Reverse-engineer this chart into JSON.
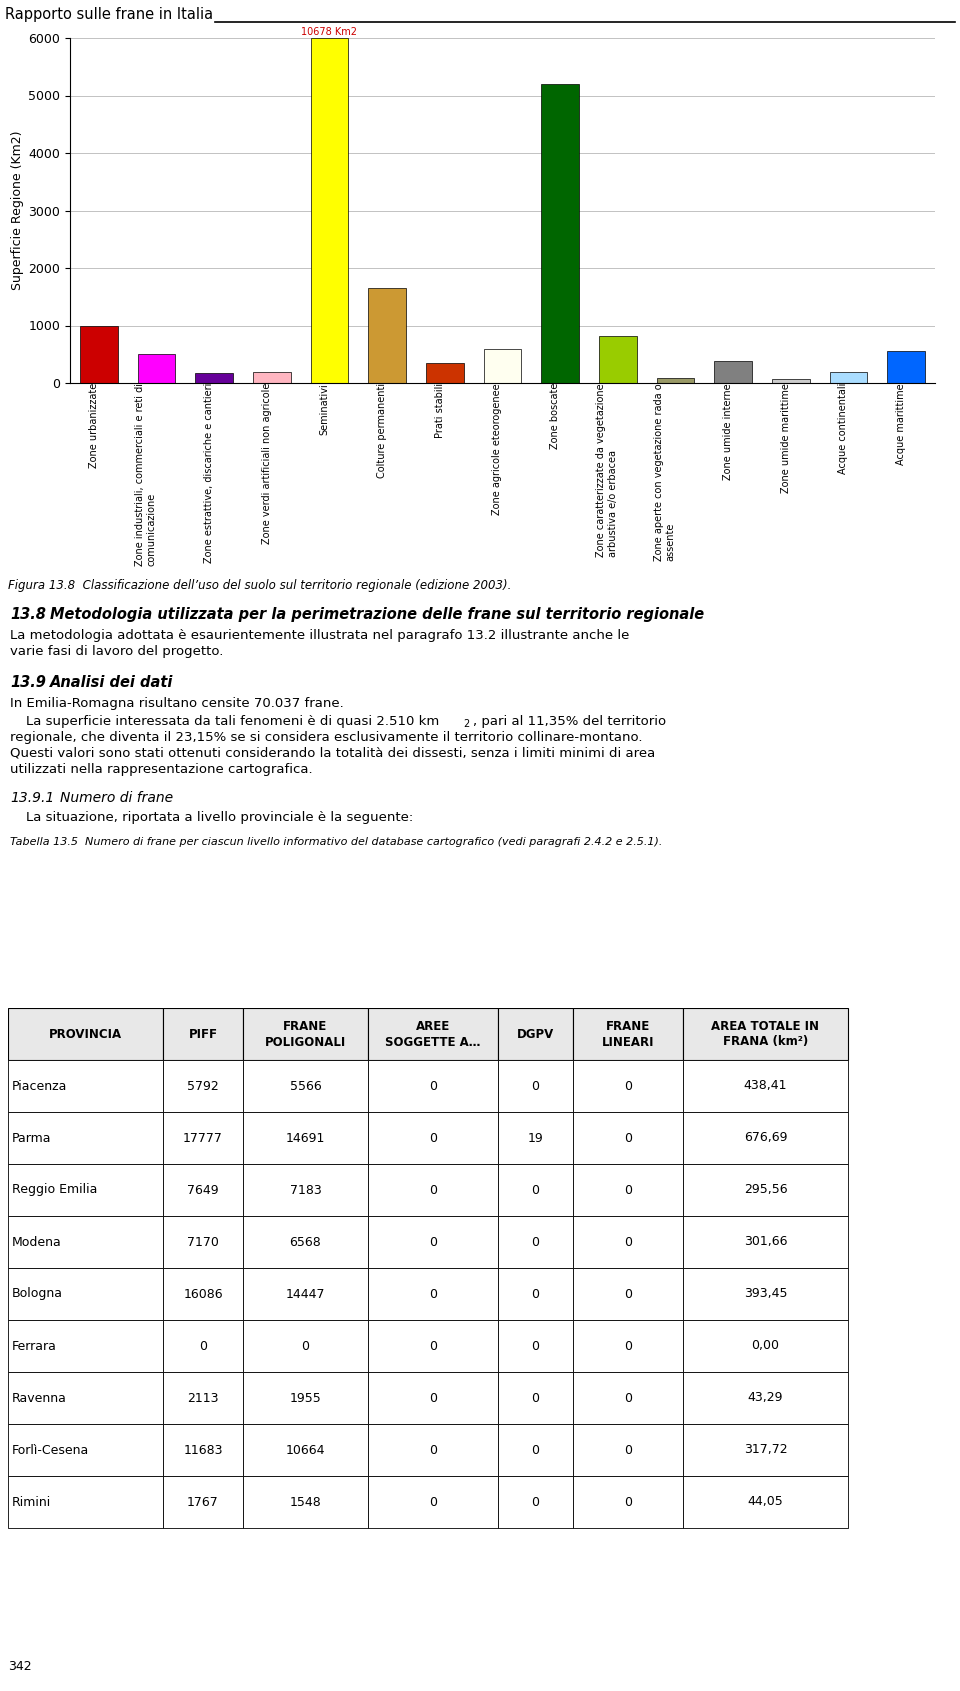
{
  "header_text": "Rapporto sulle frane in Italia",
  "chart_ylabel": "Superficie Regione (Km2)",
  "chart_ylim": [
    0,
    6000
  ],
  "chart_yticks": [
    0,
    1000,
    2000,
    3000,
    4000,
    5000,
    6000
  ],
  "chart_annotation": "10678 Km2",
  "bars": [
    {
      "label": "Zone urbanizzate",
      "value": 1000,
      "color": "#cc0000"
    },
    {
      "label": "Zone industriali, commerciali e reti di\ncomunicazione",
      "value": 500,
      "color": "#ff00ff"
    },
    {
      "label": "Zone estrattive, discariche e cantieri",
      "value": 175,
      "color": "#660099"
    },
    {
      "label": "Zone verdi artificiali non agricole",
      "value": 200,
      "color": "#ffb6c1"
    },
    {
      "label": "Seminativi",
      "value": 6000,
      "color": "#ffff00"
    },
    {
      "label": "Colture permanenti",
      "value": 1650,
      "color": "#cc9933"
    },
    {
      "label": "Prati stabili",
      "value": 340,
      "color": "#cc3300"
    },
    {
      "label": "Zone agricole eteorogenee",
      "value": 600,
      "color": "#fffff0"
    },
    {
      "label": "Zone boscate",
      "value": 5200,
      "color": "#006600"
    },
    {
      "label": "Zone caratterizzate da vegetazione\narbustiva e/o erbacea",
      "value": 820,
      "color": "#99cc00"
    },
    {
      "label": "Zone aperte con vegetazione rada o\nassente",
      "value": 95,
      "color": "#999966"
    },
    {
      "label": "Zone umide interne",
      "value": 390,
      "color": "#808080"
    },
    {
      "label": "Zone umide marittime",
      "value": 75,
      "color": "#cccccc"
    },
    {
      "label": "Acque continentali",
      "value": 185,
      "color": "#aaddff"
    },
    {
      "label": "Acque marittime",
      "value": 560,
      "color": "#0066ff"
    }
  ],
  "fig_caption": "Figura 13.8  Classificazione dell’uso del suolo sul territorio regionale (edizione 2003).",
  "section_38_num": "13.8",
  "section_38_title": "   Metodologia utilizzata per la perimetrazione delle frane sul territorio regionale",
  "section_38_body1": "   La metodologia adottata è esaurientemente illustrata nel paragrafo 13.2 illustrante anche le",
  "section_38_body2": "varie fasi di lavoro del progetto.",
  "section_39_num": "13.9",
  "section_39_title": "   Analisi dei dati",
  "section_39_p1": "   In Emilia-Romagna risultano censite 70.037 frane.",
  "section_39_p2a": "   La superficie interessata da tali fenomeni è di quasi 2.510 km",
  "section_39_p2b": "2",
  "section_39_p2c": ", pari al 11,35% del territorio",
  "section_39_p2d": "regionale, che diventa il 23,15% se si considera esclusivamente il territorio collinare-montano.",
  "section_39_p2e": "Questi valori sono stati ottenuti considerando la totalità dei dissesti, senza i limiti minimi di area",
  "section_39_p2f": "utilizzati nella rappresentazione cartografica.",
  "section_391_num": "13.9.1",
  "section_391_title": "   Numero di frane",
  "section_391_body": "   La situazione, riportata a livello provinciale è la seguente:",
  "table_caption": "Tabella 13.5  Numero di frane per ciascun livello informativo del database cartografico (vedi paragrafi 2.4.2 e 2.5.1).",
  "table_headers": [
    "PROVINCIA",
    "PIFF",
    "FRANE\nPOLIGONALI",
    "AREE\nSOGGETTE A…",
    "DGPV",
    "FRANE\nLINEARI",
    "AREA TOTALE IN\nFRANA (km²)"
  ],
  "table_rows": [
    [
      "Piacenza",
      "5792",
      "5566",
      "0",
      "0",
      "0",
      "438,41"
    ],
    [
      "Parma",
      "17777",
      "14691",
      "0",
      "19",
      "0",
      "676,69"
    ],
    [
      "Reggio Emilia",
      "7649",
      "7183",
      "0",
      "0",
      "0",
      "295,56"
    ],
    [
      "Modena",
      "7170",
      "6568",
      "0",
      "0",
      "0",
      "301,66"
    ],
    [
      "Bologna",
      "16086",
      "14447",
      "0",
      "0",
      "0",
      "393,45"
    ],
    [
      "Ferrara",
      "0",
      "0",
      "0",
      "0",
      "0",
      "0,00"
    ],
    [
      "Ravenna",
      "2113",
      "1955",
      "0",
      "0",
      "0",
      "43,29"
    ],
    [
      "Forlì-Cesena",
      "11683",
      "10664",
      "0",
      "0",
      "0",
      "317,72"
    ],
    [
      "Rimini",
      "1767",
      "1548",
      "0",
      "0",
      "0",
      "44,05"
    ]
  ],
  "page_number": "342",
  "background_color": "#ffffff"
}
